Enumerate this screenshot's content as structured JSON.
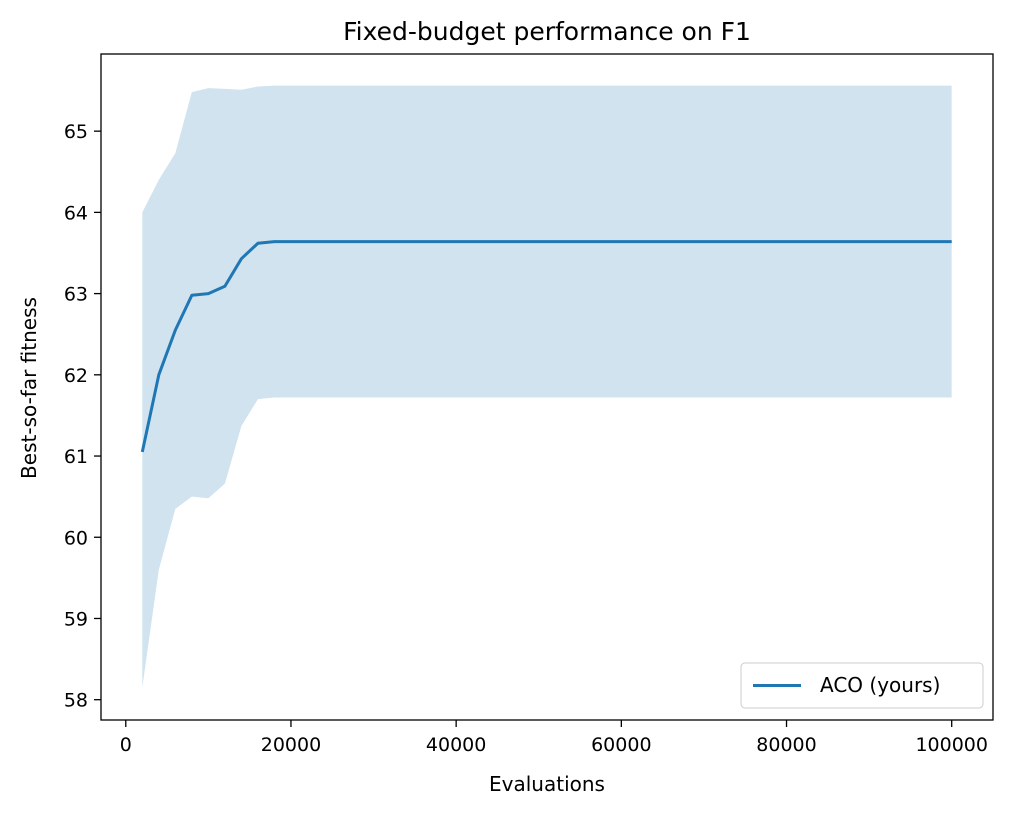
{
  "chart_data": {
    "type": "line",
    "title": "Fixed-budget performance on F1",
    "xlabel": "Evaluations",
    "ylabel": "Best-so-far fitness",
    "xlim": [
      -3000,
      105000
    ],
    "ylim": [
      57.75,
      65.95
    ],
    "xticks": [
      0,
      20000,
      40000,
      60000,
      80000,
      100000
    ],
    "xtick_labels": [
      "0",
      "20000",
      "40000",
      "60000",
      "80000",
      "100000"
    ],
    "yticks": [
      58,
      59,
      60,
      61,
      62,
      63,
      64,
      65
    ],
    "ytick_labels": [
      "58",
      "59",
      "60",
      "61",
      "62",
      "63",
      "64",
      "65"
    ],
    "grid": false,
    "legend_position": "lower-right",
    "series": [
      {
        "name": "ACO (yours)",
        "color": "#1f77b4",
        "band_color": "#d1e3ef",
        "x": [
          2000,
          4000,
          6000,
          8000,
          10000,
          12000,
          14000,
          16000,
          18000,
          20000,
          30000,
          40000,
          50000,
          60000,
          70000,
          80000,
          90000,
          100000
        ],
        "y": [
          61.05,
          62.0,
          62.55,
          62.98,
          63.0,
          63.09,
          63.43,
          63.62,
          63.64,
          63.64,
          63.64,
          63.64,
          63.64,
          63.64,
          63.64,
          63.64,
          63.64,
          63.64
        ],
        "upper": [
          64.0,
          64.4,
          64.73,
          65.48,
          65.53,
          65.52,
          65.51,
          65.55,
          65.56,
          65.56,
          65.56,
          65.56,
          65.56,
          65.56,
          65.56,
          65.56,
          65.56,
          65.56
        ],
        "lower": [
          58.15,
          59.6,
          60.35,
          60.5,
          60.48,
          60.66,
          61.37,
          61.7,
          61.72,
          61.72,
          61.72,
          61.72,
          61.72,
          61.72,
          61.72,
          61.72,
          61.72,
          61.72
        ]
      }
    ]
  }
}
